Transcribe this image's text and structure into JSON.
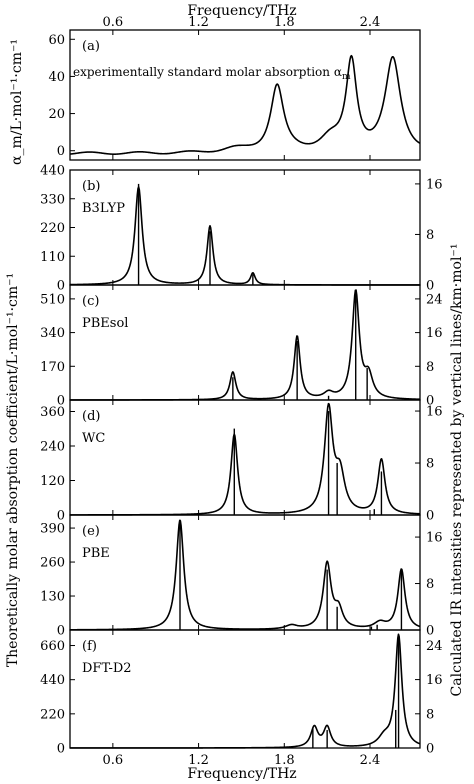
{
  "figure": {
    "top_xlabel": "Frequency/THz",
    "bottom_xlabel": "Frequency/THz",
    "top_panel_ylabel": "α_m/L·mol⁻¹·cm⁻¹",
    "left_ylabel": "Theoretically molar absorption coefficient/L·mol⁻¹·cm⁻¹",
    "right_ylabel": "Calculated IR intensities represented by vertical lines/km·mol⁻¹"
  },
  "chart_data": [
    {
      "type": "line",
      "panel": "(a)",
      "label": "experimentally standard molar absorption α",
      "label_sub": "m",
      "xlim": [
        0.3,
        2.75
      ],
      "ylim": [
        -5,
        65
      ],
      "x_ticks": [
        0.6,
        1.2,
        1.8,
        2.4
      ],
      "x_tick_labels": [
        "0.6",
        "1.2",
        "1.8",
        "2.4"
      ],
      "y_ticks": [
        0,
        20,
        40,
        60
      ],
      "peaks": [
        {
          "x": 1.75,
          "height": 36,
          "width": 0.055
        },
        {
          "x": 2.27,
          "height": 48,
          "width": 0.045
        },
        {
          "x": 2.56,
          "height": 50,
          "width": 0.065
        },
        {
          "x": 2.12,
          "height": 7,
          "width": 0.09
        },
        {
          "x": 1.45,
          "height": 2,
          "width": 0.12
        }
      ],
      "baseline": -1.5,
      "lines": []
    },
    {
      "type": "line",
      "panel": "(b)",
      "label": "B3LYP",
      "xlim": [
        0.3,
        2.75
      ],
      "ylim": [
        0,
        440
      ],
      "y_ticks": [
        0,
        110,
        220,
        330,
        440
      ],
      "ylim_right": [
        0,
        18.2
      ],
      "y_ticks_right": [
        0,
        8,
        16
      ],
      "peaks": [
        {
          "x": 0.78,
          "height": 375,
          "width": 0.03
        },
        {
          "x": 1.28,
          "height": 225,
          "width": 0.025
        },
        {
          "x": 1.58,
          "height": 45,
          "width": 0.02
        }
      ],
      "baseline": 0,
      "lines": [
        {
          "x": 0.78,
          "value": 16.0
        },
        {
          "x": 1.28,
          "value": 8.5
        },
        {
          "x": 1.58,
          "value": 1.7
        }
      ]
    },
    {
      "type": "line",
      "panel": "(c)",
      "label": "PBEsol",
      "xlim": [
        0.3,
        2.75
      ],
      "ylim": [
        0,
        580
      ],
      "y_ticks": [
        0,
        170,
        340,
        510
      ],
      "ylim_right": [
        0,
        27.3
      ],
      "y_ticks_right": [
        0,
        8,
        16,
        24
      ],
      "peaks": [
        {
          "x": 1.44,
          "height": 140,
          "width": 0.025
        },
        {
          "x": 1.89,
          "height": 320,
          "width": 0.025
        },
        {
          "x": 2.3,
          "height": 540,
          "width": 0.03
        },
        {
          "x": 2.39,
          "height": 110,
          "width": 0.035
        },
        {
          "x": 2.11,
          "height": 30,
          "width": 0.04
        }
      ],
      "baseline": 0,
      "lines": [
        {
          "x": 1.44,
          "value": 5.4
        },
        {
          "x": 1.89,
          "value": 14.0
        },
        {
          "x": 2.3,
          "value": 25.3
        },
        {
          "x": 2.38,
          "value": 7.6
        },
        {
          "x": 2.11,
          "value": 1.0
        }
      ]
    },
    {
      "type": "line",
      "panel": "(d)",
      "label": "WC",
      "xlim": [
        0.3,
        2.75
      ],
      "ylim": [
        0,
        400
      ],
      "y_ticks": [
        0,
        120,
        240,
        360
      ],
      "ylim_right": [
        0,
        17.7
      ],
      "y_ticks_right": [
        0,
        8,
        16
      ],
      "peaks": [
        {
          "x": 1.45,
          "height": 280,
          "width": 0.028
        },
        {
          "x": 2.11,
          "height": 360,
          "width": 0.035
        },
        {
          "x": 2.19,
          "height": 130,
          "width": 0.04
        },
        {
          "x": 2.48,
          "height": 190,
          "width": 0.03
        }
      ],
      "baseline": 0,
      "lines": [
        {
          "x": 1.45,
          "value": 13.3
        },
        {
          "x": 2.11,
          "value": 16.0
        },
        {
          "x": 2.17,
          "value": 8.0
        },
        {
          "x": 2.43,
          "value": 0.9
        },
        {
          "x": 2.48,
          "value": 6.7
        }
      ]
    },
    {
      "type": "line",
      "panel": "(e)",
      "label": "PBE",
      "xlim": [
        0.3,
        2.75
      ],
      "ylim": [
        0,
        440
      ],
      "y_ticks": [
        0,
        130,
        260,
        390
      ],
      "ylim_right": [
        0,
        19.8
      ],
      "y_ticks_right": [
        0,
        8,
        16
      ],
      "peaks": [
        {
          "x": 1.07,
          "height": 420,
          "width": 0.032
        },
        {
          "x": 2.1,
          "height": 250,
          "width": 0.033
        },
        {
          "x": 2.18,
          "height": 70,
          "width": 0.035
        },
        {
          "x": 2.62,
          "height": 230,
          "width": 0.03
        },
        {
          "x": 2.47,
          "height": 25,
          "width": 0.05
        },
        {
          "x": 1.85,
          "height": 15,
          "width": 0.05
        }
      ],
      "baseline": 0,
      "lines": [
        {
          "x": 1.07,
          "value": 19.0
        },
        {
          "x": 2.1,
          "value": 10.4
        },
        {
          "x": 2.17,
          "value": 4.0
        },
        {
          "x": 2.41,
          "value": 0.6
        },
        {
          "x": 2.45,
          "value": 0.9
        },
        {
          "x": 2.62,
          "value": 10.4
        }
      ]
    },
    {
      "type": "line",
      "panel": "(f)",
      "label": "DFT-D2",
      "xlim": [
        0.3,
        2.75
      ],
      "ylim": [
        0,
        760
      ],
      "y_ticks": [
        0,
        220,
        440,
        660
      ],
      "ylim_right": [
        0,
        27.6
      ],
      "y_ticks_right": [
        0,
        8,
        16,
        24
      ],
      "x_ticks": [
        0.6,
        1.2,
        1.8,
        2.4
      ],
      "x_tick_labels": [
        "0.6",
        "1.2",
        "1.8",
        "2.4"
      ],
      "peaks": [
        {
          "x": 2.01,
          "height": 130,
          "width": 0.03
        },
        {
          "x": 2.1,
          "height": 130,
          "width": 0.03
        },
        {
          "x": 2.6,
          "height": 720,
          "width": 0.028
        },
        {
          "x": 2.5,
          "height": 60,
          "width": 0.05
        }
      ],
      "baseline": 0,
      "lines": [
        {
          "x": 2.0,
          "value": 4.6
        },
        {
          "x": 2.1,
          "value": 4.2
        },
        {
          "x": 2.58,
          "value": 8.9
        },
        {
          "x": 2.6,
          "value": 26.0
        }
      ]
    }
  ]
}
